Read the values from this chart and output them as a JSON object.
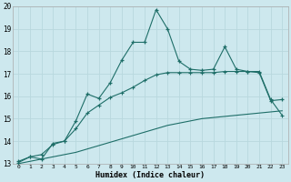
{
  "xlabel": "Humidex (Indice chaleur)",
  "background_color": "#cde8ee",
  "line_color": "#1e6e68",
  "grid_color": "#b8d8de",
  "xlim": [
    -0.5,
    23.5
  ],
  "ylim": [
    13,
    20
  ],
  "yticks": [
    13,
    14,
    15,
    16,
    17,
    18,
    19,
    20
  ],
  "xticks": [
    0,
    1,
    2,
    3,
    4,
    5,
    6,
    7,
    8,
    9,
    10,
    11,
    12,
    13,
    14,
    15,
    16,
    17,
    18,
    19,
    20,
    21,
    22,
    23
  ],
  "curve_main_x": [
    0,
    1,
    2,
    3,
    4,
    5,
    6,
    7,
    8,
    9,
    10,
    11,
    12,
    13,
    14,
    15,
    16,
    17,
    18,
    19,
    20,
    21,
    22,
    23
  ],
  "curve_main_y": [
    13.1,
    13.3,
    13.2,
    13.9,
    14.0,
    14.9,
    16.1,
    15.9,
    16.6,
    17.6,
    18.4,
    18.4,
    19.85,
    19.0,
    17.55,
    17.2,
    17.15,
    17.2,
    18.2,
    17.2,
    17.1,
    17.05,
    15.8,
    15.85
  ],
  "curve_mid_x": [
    0,
    1,
    2,
    3,
    4,
    5,
    6,
    7,
    8,
    9,
    10,
    11,
    12,
    13,
    14,
    15,
    16,
    17,
    18,
    19,
    20,
    21,
    22,
    23
  ],
  "curve_mid_y": [
    13.05,
    13.3,
    13.4,
    13.85,
    14.0,
    14.55,
    15.25,
    15.6,
    15.95,
    16.15,
    16.4,
    16.7,
    16.95,
    17.05,
    17.05,
    17.05,
    17.05,
    17.05,
    17.1,
    17.1,
    17.1,
    17.1,
    15.85,
    15.15
  ],
  "curve_low_x": [
    0,
    1,
    2,
    3,
    4,
    5,
    6,
    7,
    8,
    9,
    10,
    11,
    12,
    13,
    14,
    15,
    16,
    17,
    18,
    19,
    20,
    21,
    22,
    23
  ],
  "curve_low_y": [
    13.0,
    13.1,
    13.2,
    13.3,
    13.4,
    13.5,
    13.65,
    13.8,
    13.95,
    14.1,
    14.25,
    14.4,
    14.55,
    14.7,
    14.8,
    14.9,
    15.0,
    15.05,
    15.1,
    15.15,
    15.2,
    15.25,
    15.3,
    15.35
  ]
}
